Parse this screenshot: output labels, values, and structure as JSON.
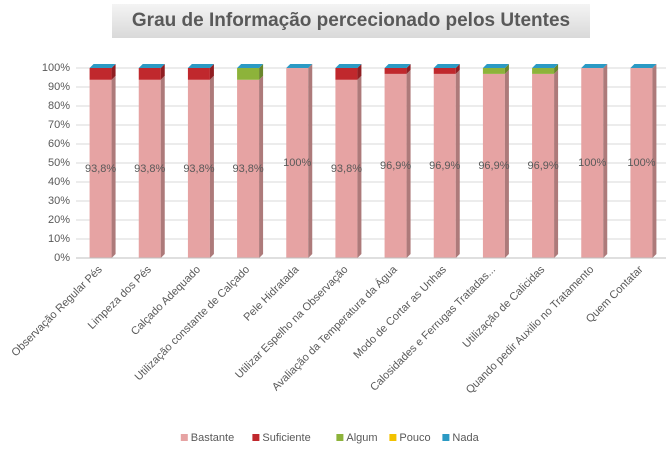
{
  "chart_data": {
    "type": "bar",
    "stacked": true,
    "title": "Grau de Informação percecionado pelos Utentes",
    "categories": [
      "Observação Regular Pés",
      "Limpeza dos Pés",
      "Calçado Adequado",
      "Utilização constante de Calçado",
      "Pele Hidratada",
      "Utilizar Espelho na Observação",
      "Avaliação da Temperatura da Água",
      "Modo de Cortar as Unhas",
      "Calosidades e Ferrugas Tratadas...",
      "Utilização de Calicidas",
      "Quando pedir Auxilio no Tratamento",
      "Quem Contatar"
    ],
    "series": [
      {
        "name": "Bastante",
        "color": "#e6a3a3",
        "values": [
          93.8,
          93.8,
          93.8,
          93.8,
          100,
          93.8,
          96.9,
          96.9,
          96.9,
          96.9,
          100,
          100
        ],
        "value_labels": [
          "93,8%",
          "93,8%",
          "93,8%",
          "93,8%",
          "100%",
          "93,8%",
          "96,9%",
          "96,9%",
          "96,9%",
          "96,9%",
          "100%",
          "100%"
        ]
      },
      {
        "name": "Suficiente",
        "color": "#c0282d",
        "values": [
          6.2,
          6.2,
          6.2,
          0,
          0,
          6.2,
          3.1,
          3.1,
          0,
          0,
          0,
          0
        ]
      },
      {
        "name": "Algum",
        "color": "#8db33a",
        "values": [
          0,
          0,
          0,
          6.2,
          0,
          0,
          0,
          0,
          3.1,
          3.1,
          0,
          0
        ]
      },
      {
        "name": "Pouco",
        "color": "#f2c200",
        "values": [
          0,
          0,
          0,
          0,
          0,
          0,
          0,
          0,
          0,
          0,
          0,
          0
        ]
      },
      {
        "name": "Nada",
        "color": "#2b9ac4",
        "values": [
          0,
          0,
          0,
          0,
          0,
          0,
          0,
          0,
          0,
          0,
          0,
          0
        ]
      }
    ],
    "ylim": [
      0,
      100
    ],
    "yticks": [
      {
        "value": 0,
        "label": "0%"
      },
      {
        "value": 10,
        "label": "10%"
      },
      {
        "value": 20,
        "label": "20%"
      },
      {
        "value": 30,
        "label": "30%"
      },
      {
        "value": 40,
        "label": "40%"
      },
      {
        "value": 50,
        "label": "50%"
      },
      {
        "value": 60,
        "label": "60%"
      },
      {
        "value": 70,
        "label": "70%"
      },
      {
        "value": 80,
        "label": "80%"
      },
      {
        "value": 90,
        "label": "90%"
      },
      {
        "value": 100,
        "label": "100%"
      }
    ],
    "grid": true,
    "legend": "bottom"
  }
}
